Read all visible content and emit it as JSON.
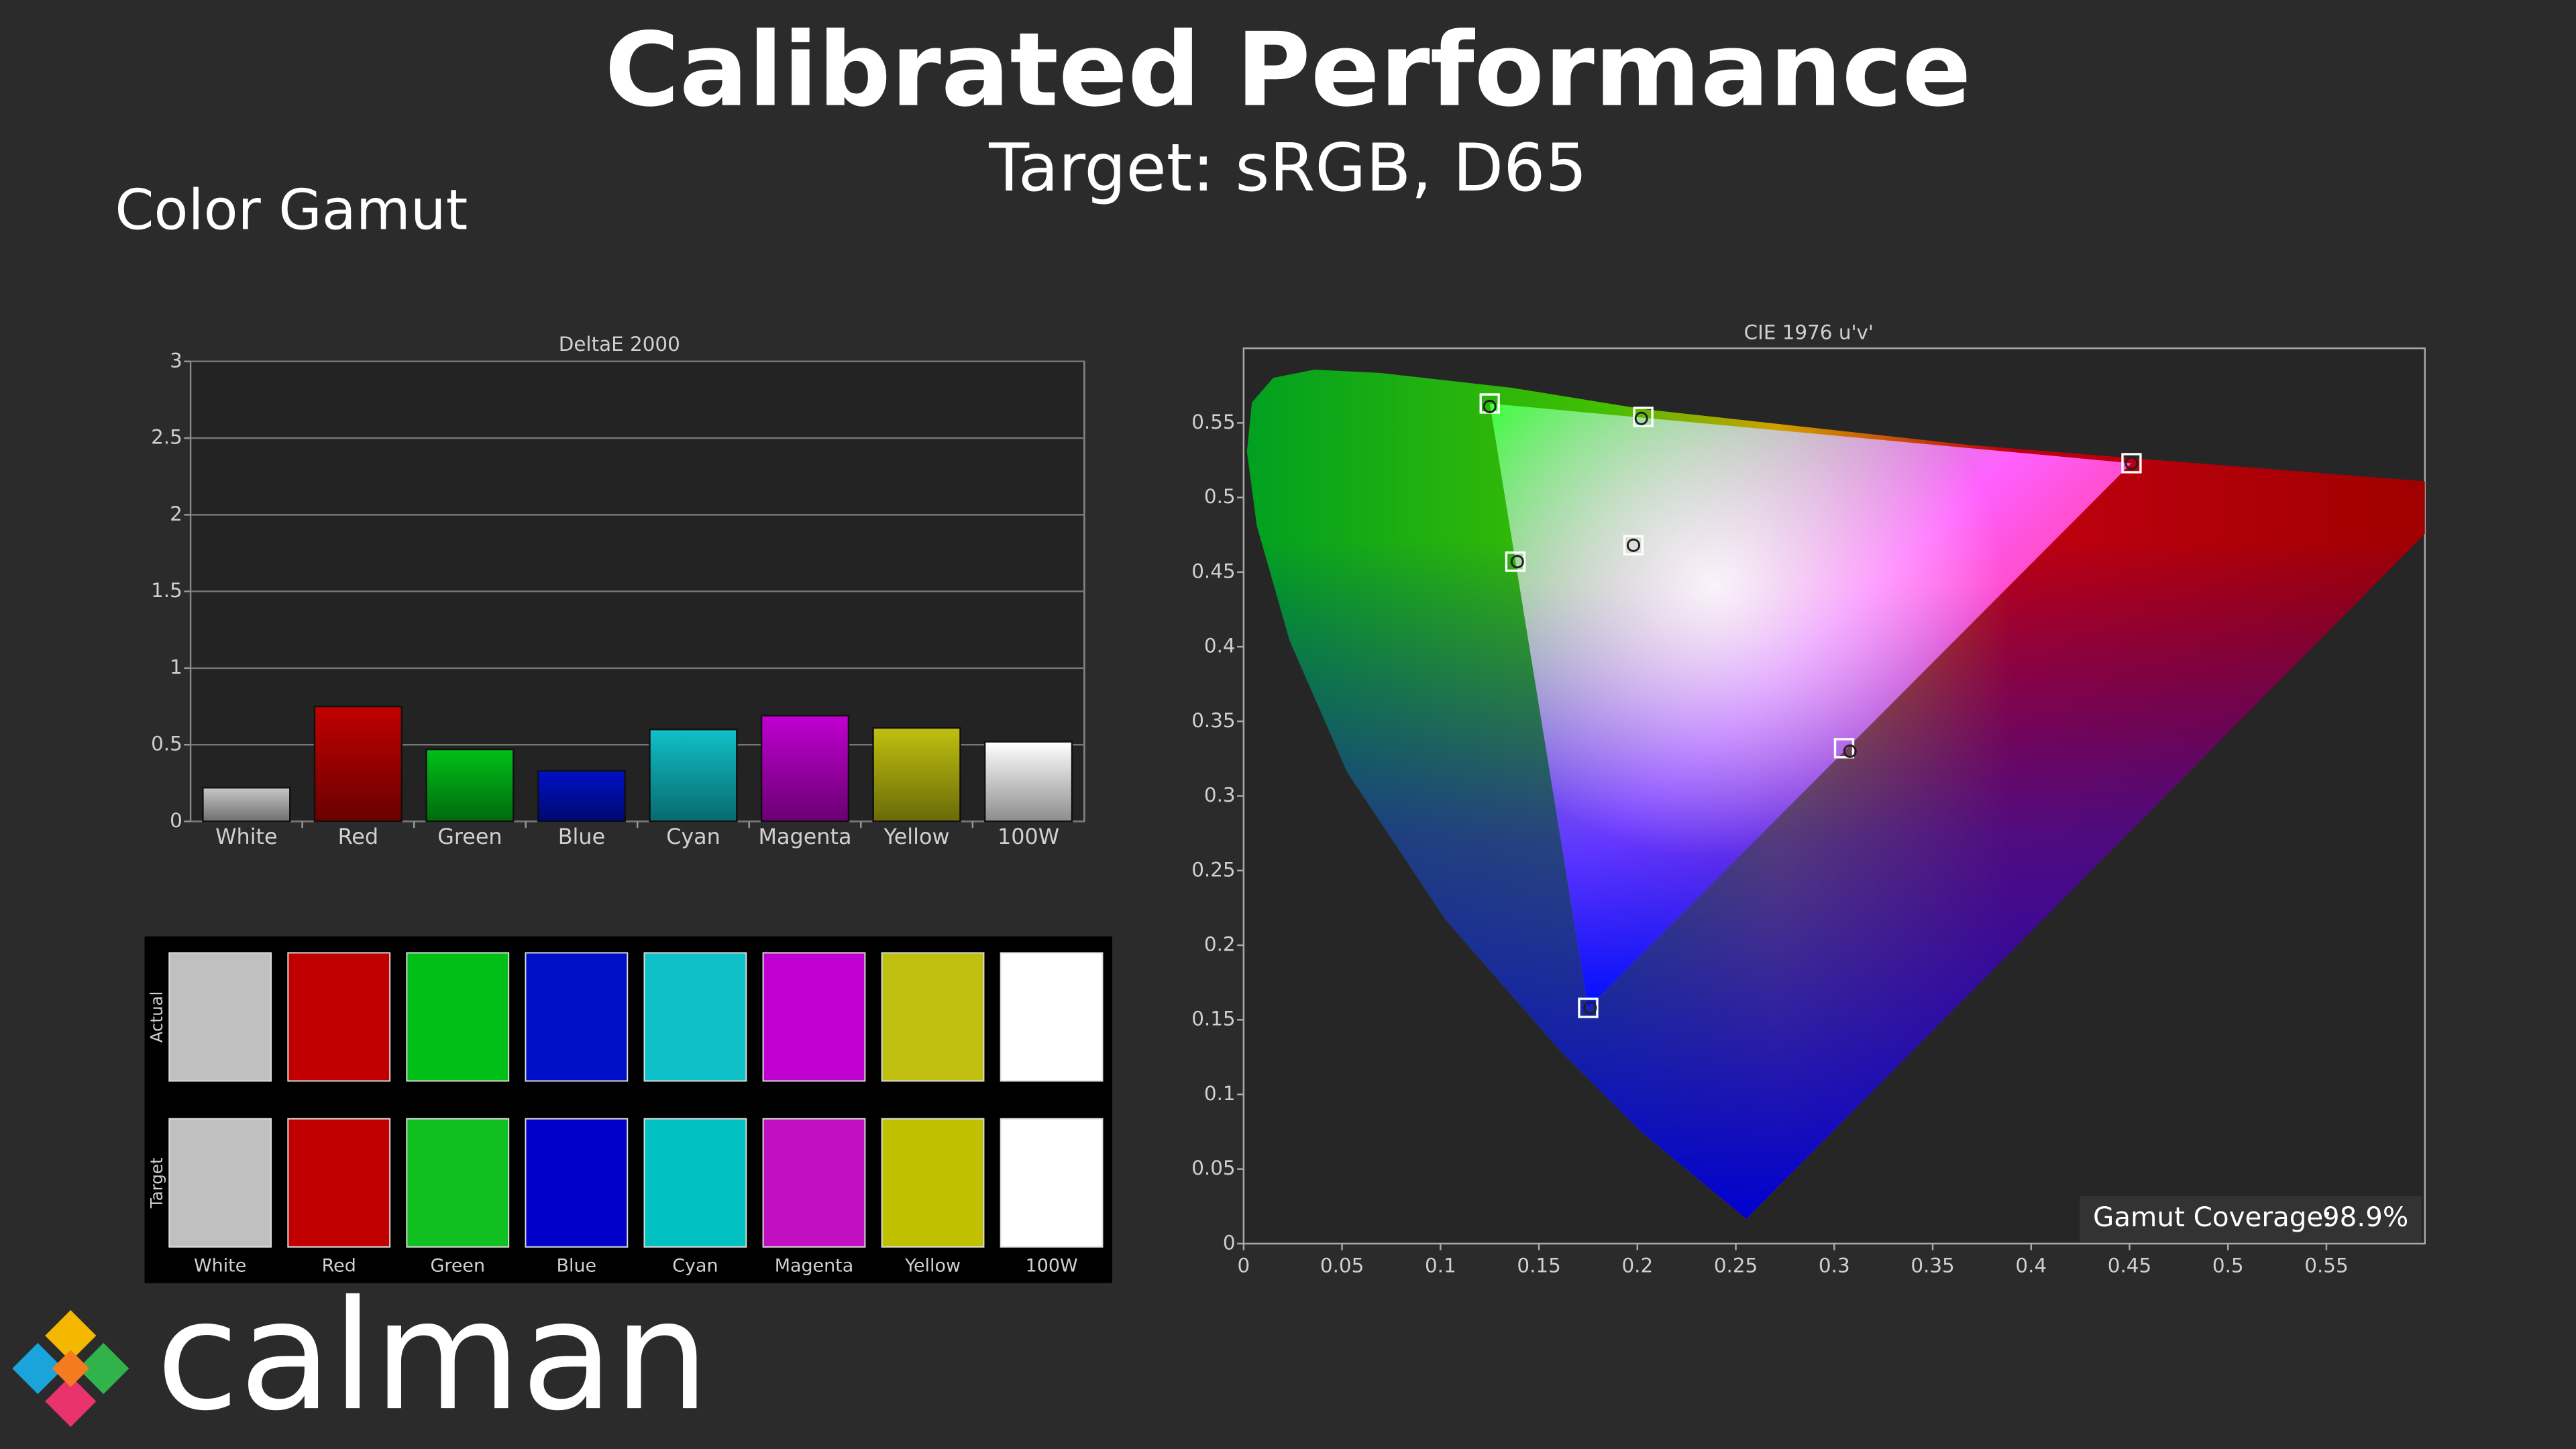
{
  "title": "Calibrated Performance",
  "subtitle": "Target: sRGB, D65",
  "section": "Color Gamut",
  "chart_data": [
    {
      "type": "bar",
      "title": "DeltaE 2000",
      "categories": [
        "White",
        "Red",
        "Green",
        "Blue",
        "Cyan",
        "Magenta",
        "Yellow",
        "100W"
      ],
      "values": [
        0.22,
        0.75,
        0.47,
        0.33,
        0.6,
        0.69,
        0.61,
        0.52
      ],
      "colors": [
        "#c8c8c8",
        "#c00000",
        "#00c018",
        "#0010c8",
        "#10c0c8",
        "#c000d0",
        "#c0c010",
        "#ffffff"
      ],
      "ylim": [
        0,
        3
      ],
      "yticks": [
        0,
        0.5,
        1,
        1.5,
        2,
        2.5,
        3
      ],
      "grid": true
    },
    {
      "type": "scatter",
      "title": "CIE 1976 u'v'",
      "series": [
        {
          "marker": "square",
          "color": "#ffffff",
          "x": [
            0.125,
            0.203,
            0.451,
            0.198,
            0.138,
            0.305,
            0.175
          ],
          "values": [
            0.563,
            0.554,
            0.523,
            0.468,
            0.457,
            0.332,
            0.158
          ]
        },
        {
          "marker": "circle",
          "color": "#202020",
          "x": [
            0.125,
            0.202,
            0.451,
            0.198,
            0.139,
            0.308,
            0.176
          ],
          "values": [
            0.561,
            0.553,
            0.523,
            0.468,
            0.457,
            0.33,
            0.158
          ]
        }
      ],
      "xlim": [
        0,
        0.6
      ],
      "ylim": [
        0,
        0.6
      ],
      "xticks": [
        0,
        0.05,
        0.1,
        0.15,
        0.2,
        0.25,
        0.3,
        0.35,
        0.4,
        0.45,
        0.5,
        0.55
      ],
      "yticks": [
        0,
        0.05,
        0.1,
        0.15,
        0.2,
        0.25,
        0.3,
        0.35,
        0.4,
        0.45,
        0.5,
        0.55
      ],
      "grid": false
    }
  ],
  "swatches": {
    "rows": [
      "Actual",
      "Target"
    ],
    "columns": [
      "White",
      "Red",
      "Green",
      "Blue",
      "Cyan",
      "Magenta",
      "Yellow",
      "100W"
    ],
    "actual_colors": [
      "#c0c0c0",
      "#c00000",
      "#00c018",
      "#0010c8",
      "#10c0c8",
      "#c000d0",
      "#c0c010",
      "#ffffff"
    ],
    "target_colors": [
      "#c0c0c0",
      "#c00000",
      "#10c020",
      "#0000c8",
      "#00c0c0",
      "#c010c0",
      "#c0c000",
      "#ffffff"
    ]
  },
  "gamut_coverage": {
    "label": "Gamut Coverage:",
    "value": "98.9%"
  },
  "logo": "calman"
}
